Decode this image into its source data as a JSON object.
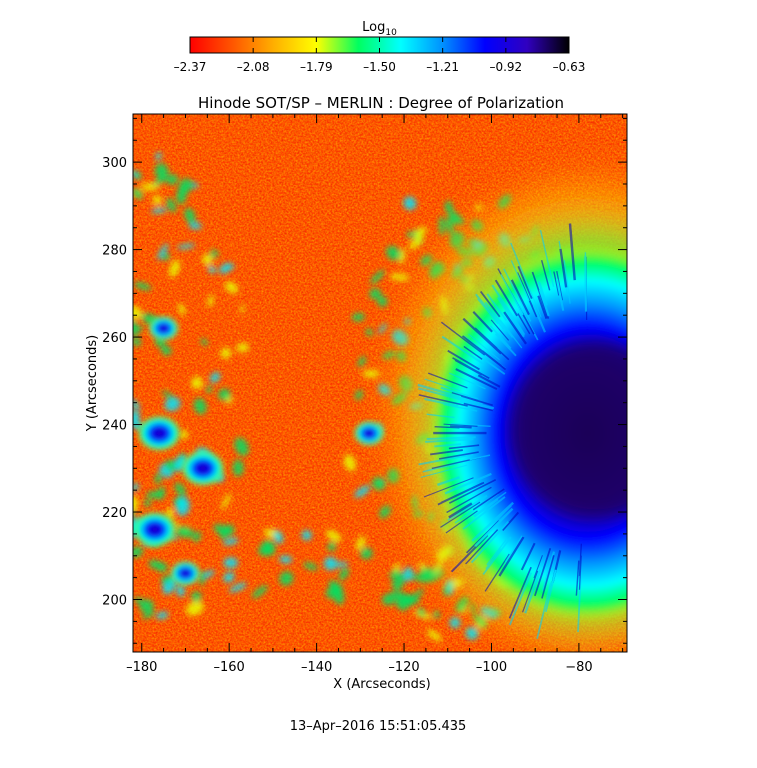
{
  "chart_data": {
    "type": "heatmap",
    "title": "Hinode SOT/SP – MERLIN : Degree of Polarization",
    "xlabel": "X (Arcseconds)",
    "ylabel": "Y (Arcseconds)",
    "timestamp": "13–Apr–2016 15:51:05.435",
    "xlim": [
      -182,
      -69
    ],
    "ylim": [
      188,
      311
    ],
    "xticks": [
      -180,
      -160,
      -140,
      -120,
      -100,
      -80
    ],
    "xtick_labels": [
      "–180",
      "–160",
      "–140",
      "–120",
      "–100",
      "−80"
    ],
    "yticks": [
      200,
      220,
      240,
      260,
      280,
      300
    ],
    "ytick_labels": [
      "200",
      "220",
      "240",
      "260",
      "280",
      "300"
    ],
    "colorbar": {
      "label": "Log",
      "label_subscript": "10",
      "range": [
        -2.37,
        -0.63
      ],
      "ticks": [
        -2.37,
        -2.08,
        -1.79,
        -1.5,
        -1.21,
        -0.92,
        -0.63
      ],
      "tick_labels": [
        "–2.37",
        "–2.08",
        "–1.79",
        "–1.50",
        "–1.21",
        "–0.92",
        "–0.63"
      ],
      "colors": [
        "#ff0000",
        "#ff5500",
        "#ffb000",
        "#ffff00",
        "#00ff60",
        "#00ffff",
        "#0090ff",
        "#0000ff",
        "#3000c0",
        "#000000"
      ]
    },
    "features": [
      {
        "kind": "sunspot",
        "center": [
          -78,
          238
        ],
        "value": -0.7
      },
      {
        "kind": "plage",
        "center": [
          -176,
          238
        ],
        "value": -1.0
      },
      {
        "kind": "plage",
        "center": [
          -166,
          230
        ],
        "value": -1.1
      },
      {
        "kind": "plage",
        "center": [
          -177,
          216
        ],
        "value": -1.1
      },
      {
        "kind": "plage",
        "center": [
          -170,
          206
        ],
        "value": -1.3
      },
      {
        "kind": "plage",
        "center": [
          -175,
          262
        ],
        "value": -1.4
      },
      {
        "kind": "plage",
        "center": [
          -128,
          238
        ],
        "value": -1.2
      },
      {
        "kind": "quiet_sun",
        "value": -2.2
      }
    ]
  }
}
